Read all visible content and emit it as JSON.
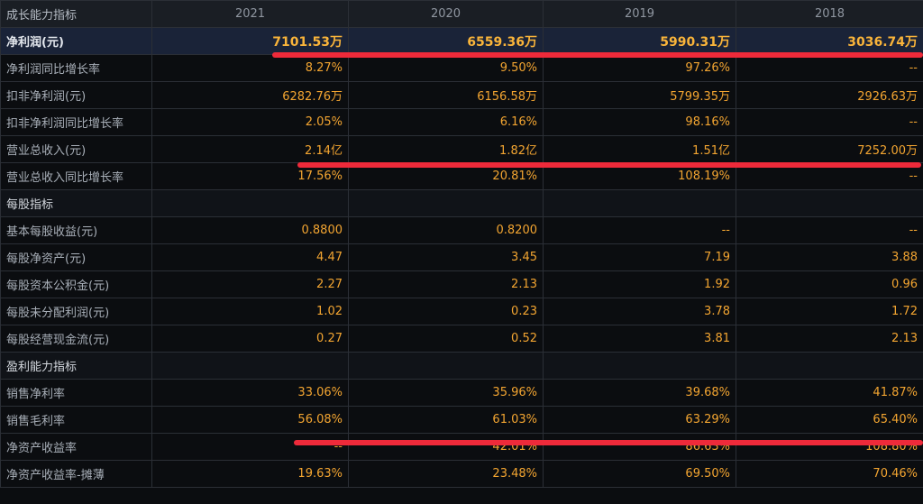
{
  "header": {
    "title": "成长能力指标",
    "years": [
      "2021",
      "2020",
      "2019",
      "2018"
    ]
  },
  "rows": [
    {
      "label": "净利润(元)",
      "values": [
        "7101.53万",
        "6559.36万",
        "5990.31万",
        "3036.74万"
      ]
    },
    {
      "label": "净利润同比增长率",
      "values": [
        "8.27%",
        "9.50%",
        "97.26%",
        "--"
      ]
    },
    {
      "label": "扣非净利润(元)",
      "values": [
        "6282.76万",
        "6156.58万",
        "5799.35万",
        "2926.63万"
      ]
    },
    {
      "label": "扣非净利润同比增长率",
      "values": [
        "2.05%",
        "6.16%",
        "98.16%",
        "--"
      ]
    },
    {
      "label": "营业总收入(元)",
      "values": [
        "2.14亿",
        "1.82亿",
        "1.51亿",
        "7252.00万"
      ]
    },
    {
      "label": "营业总收入同比增长率",
      "values": [
        "17.56%",
        "20.81%",
        "108.19%",
        "--"
      ]
    },
    {
      "label": "每股指标",
      "values": [
        "",
        "",
        "",
        ""
      ]
    },
    {
      "label": "基本每股收益(元)",
      "values": [
        "0.8800",
        "0.8200",
        "--",
        "--"
      ]
    },
    {
      "label": "每股净资产(元)",
      "values": [
        "4.47",
        "3.45",
        "7.19",
        "3.88"
      ]
    },
    {
      "label": "每股资本公积金(元)",
      "values": [
        "2.27",
        "2.13",
        "1.92",
        "0.96"
      ]
    },
    {
      "label": "每股未分配利润(元)",
      "values": [
        "1.02",
        "0.23",
        "3.78",
        "1.72"
      ]
    },
    {
      "label": "每股经营现金流(元)",
      "values": [
        "0.27",
        "0.52",
        "3.81",
        "2.13"
      ]
    },
    {
      "label": "盈利能力指标",
      "values": [
        "",
        "",
        "",
        ""
      ]
    },
    {
      "label": "销售净利率",
      "values": [
        "33.06%",
        "35.96%",
        "39.68%",
        "41.87%"
      ]
    },
    {
      "label": "销售毛利率",
      "values": [
        "56.08%",
        "61.03%",
        "63.29%",
        "65.40%"
      ]
    },
    {
      "label": "净资产收益率",
      "values": [
        "--",
        "42.01%",
        "86.63%",
        "108.80%"
      ]
    },
    {
      "label": "净资产收益率-摊薄",
      "values": [
        "19.63%",
        "23.48%",
        "69.50%",
        "70.46%"
      ]
    }
  ],
  "colors": {
    "value": "#f3a531",
    "label": "#a8afb8",
    "highlight_row": "#1a2338",
    "annotation_line": "#ee2a3a"
  }
}
